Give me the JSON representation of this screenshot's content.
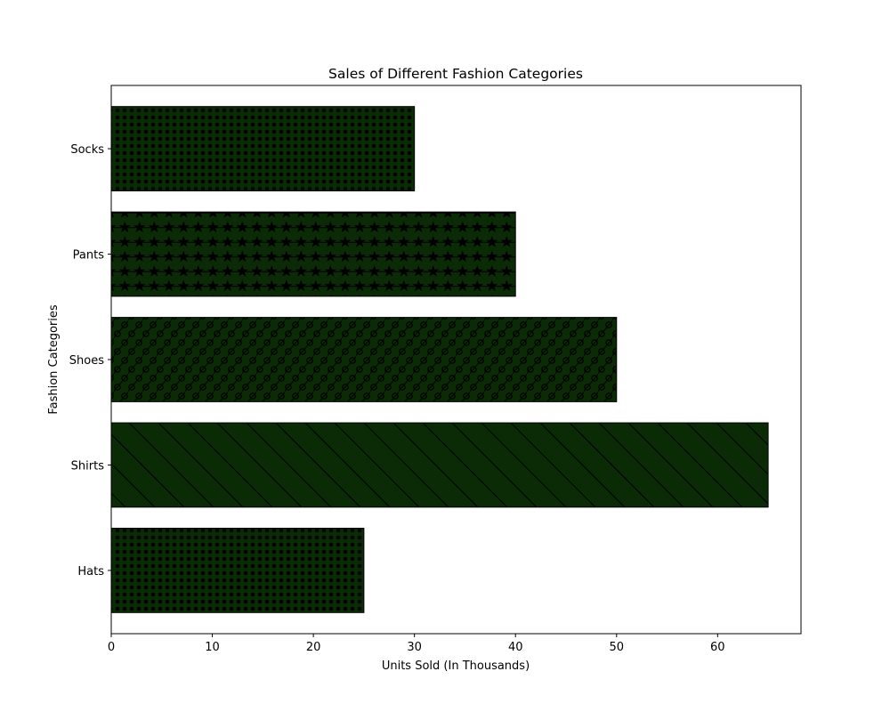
{
  "chart_data": {
    "type": "bar",
    "orientation": "horizontal",
    "title": "Sales of Different Fashion Categories",
    "xlabel": "Units Sold (In Thousands)",
    "ylabel": "Fashion Categories",
    "categories": [
      "Hats",
      "Shirts",
      "Shoes",
      "Pants",
      "Socks"
    ],
    "values": [
      25,
      65,
      50,
      40,
      30
    ],
    "xlim": [
      0,
      68.25
    ],
    "xticks": [
      0,
      10,
      20,
      30,
      40,
      50,
      60
    ],
    "grid": false,
    "bar_color": "#0b2a06",
    "hatches": [
      "dots-dense",
      "diagonal-back",
      "diagonal-circles",
      "stars-lines",
      "dots-dense"
    ]
  }
}
